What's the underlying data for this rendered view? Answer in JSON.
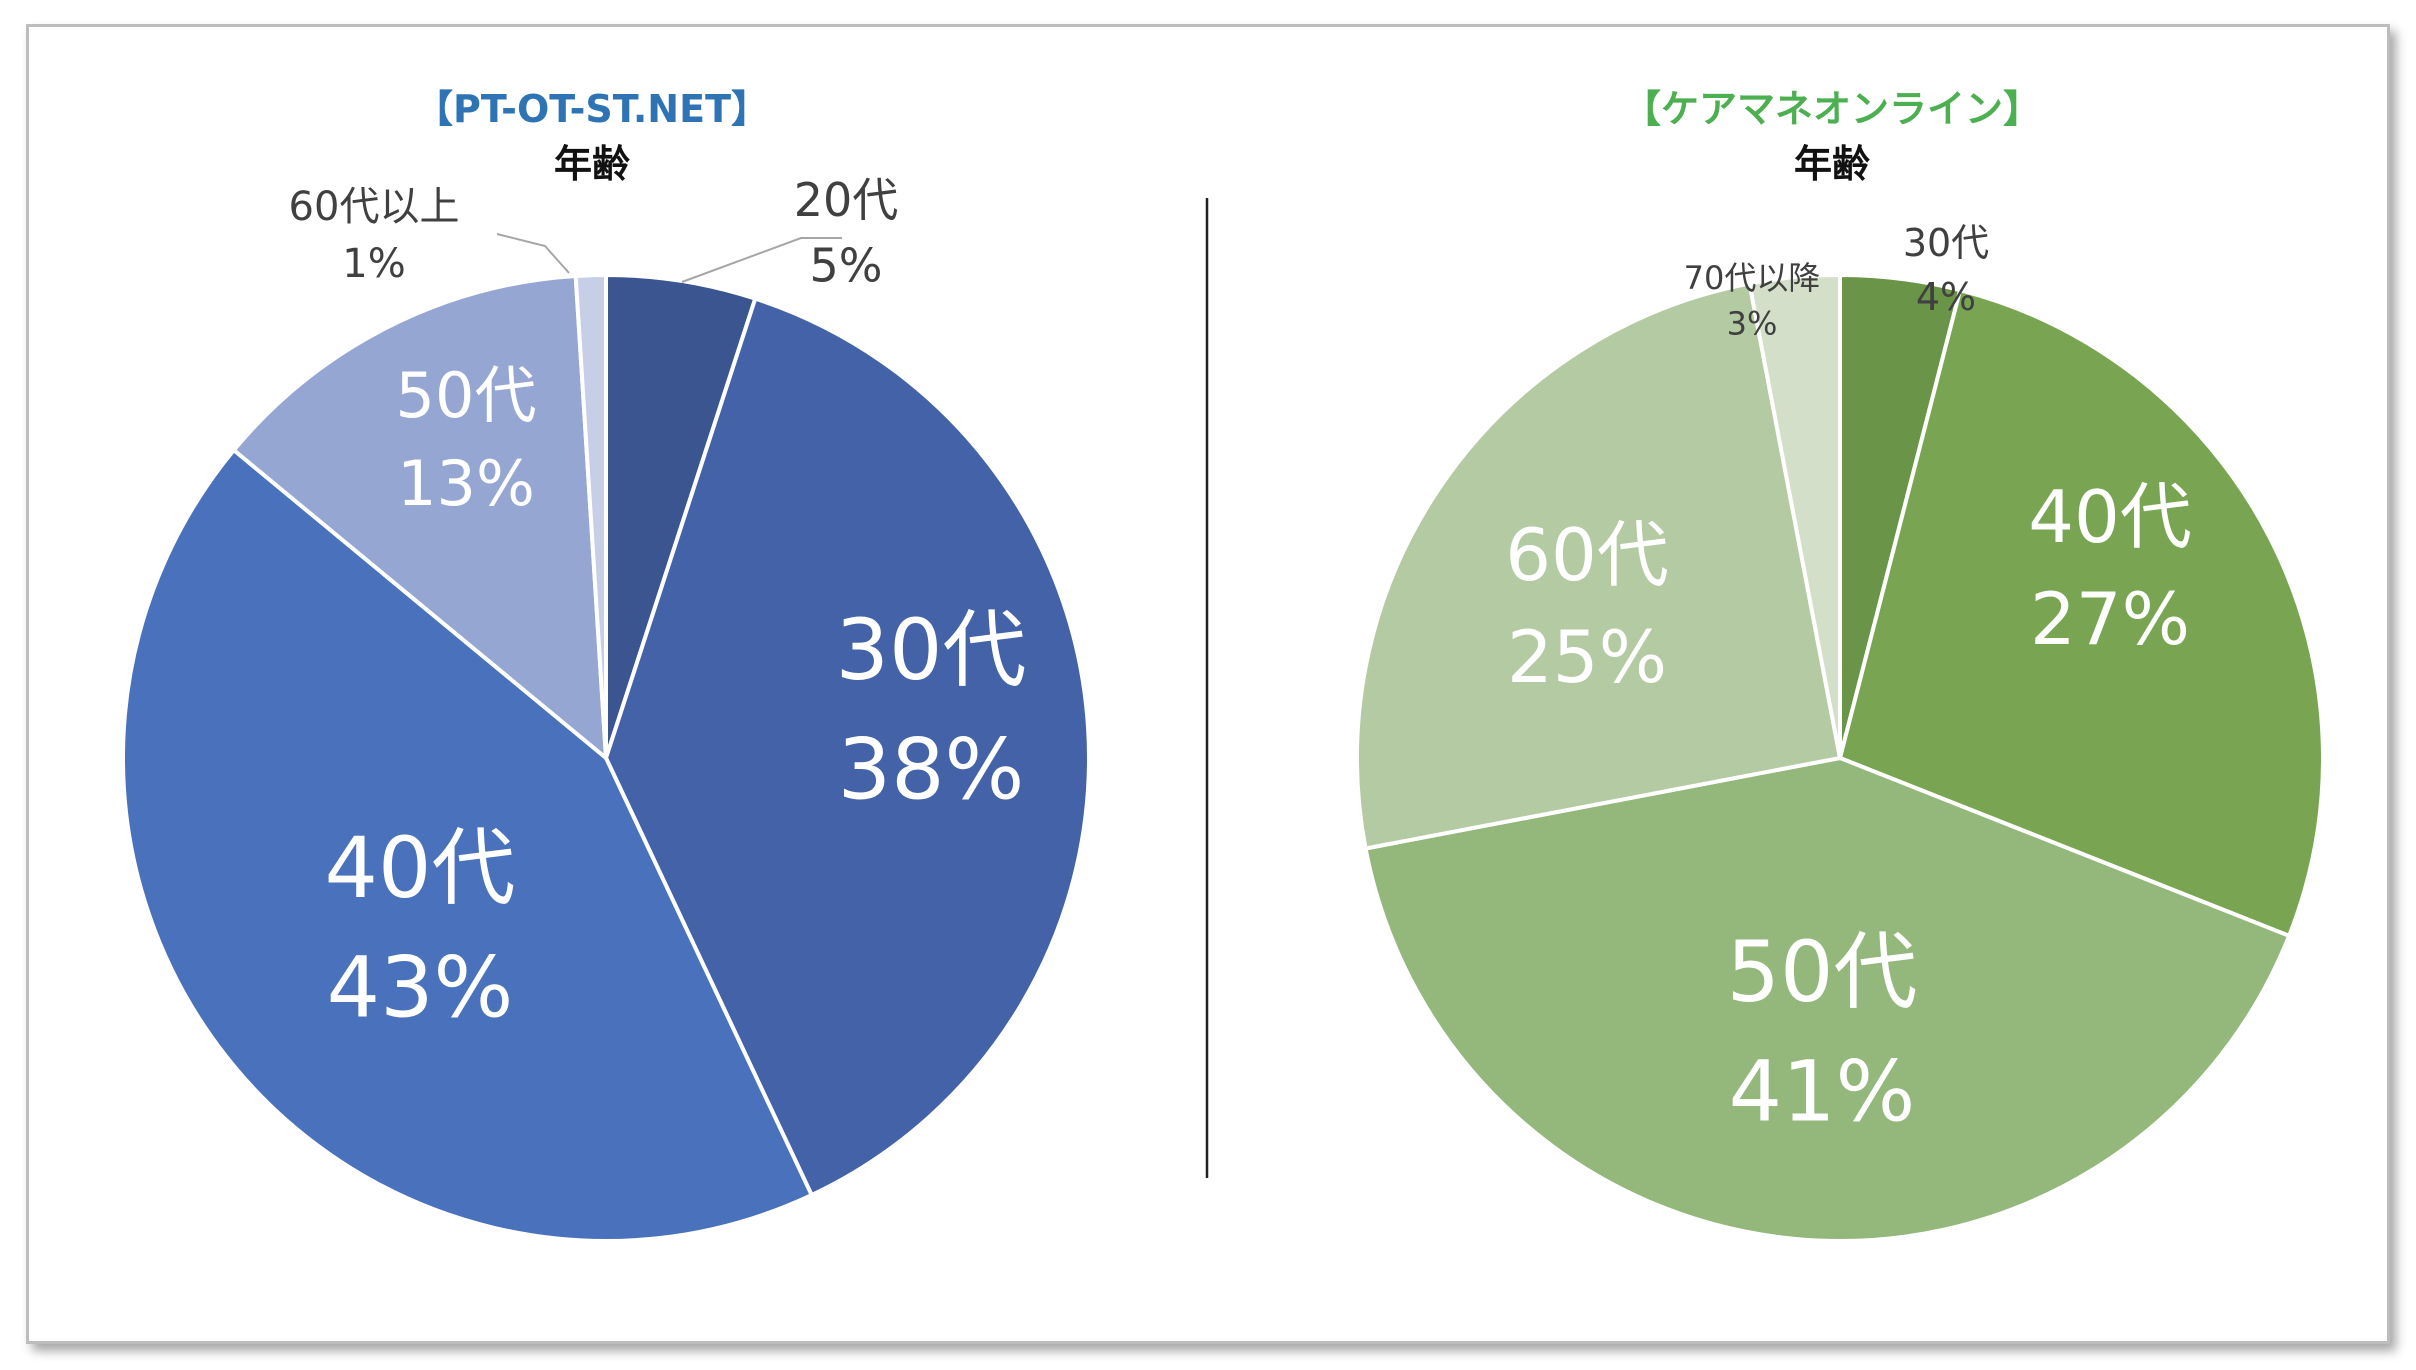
{
  "chart_data": [
    {
      "type": "pie",
      "title": "【PT-OT-ST.NET】",
      "subtitle": "年齢",
      "title_color": "#2E74B5",
      "categories": [
        "20代",
        "30代",
        "40代",
        "50代",
        "60代以上"
      ],
      "values": [
        5,
        38,
        43,
        13,
        1
      ],
      "labels": [
        "5%",
        "38%",
        "43%",
        "13%",
        "1%"
      ],
      "colors": [
        "#3A5590",
        "#4462A8",
        "#4A71BB",
        "#96A6D2",
        "#C6CFE6"
      ]
    },
    {
      "type": "pie",
      "title": "【ケアマネオンライン】",
      "subtitle": "年齢",
      "title_color": "#4CAF50",
      "categories": [
        "30代",
        "40代",
        "50代",
        "60代",
        "70代以降"
      ],
      "values": [
        4,
        27,
        41,
        25,
        3
      ],
      "labels": [
        "4%",
        "27%",
        "41%",
        "25%",
        "3%"
      ],
      "colors": [
        "#6A9448",
        "#79A552",
        "#94B77B",
        "#B3CAA3",
        "#D3DFC9"
      ]
    }
  ]
}
